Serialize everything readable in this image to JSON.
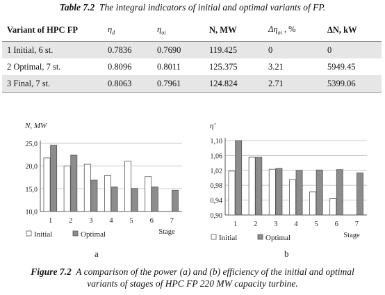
{
  "table_caption": {
    "label": "Table 7.2",
    "text": "The integral indicators of initial and optimal variants of FP."
  },
  "table": {
    "headers": [
      "Variant of HPC FP",
      "ηd",
      "ηoi",
      "N, MW",
      "Δηoi , %",
      "ΔN, kW"
    ],
    "rows": [
      [
        "1 Initial, 6 st.",
        "0.7836",
        "0.7690",
        "119.425",
        "0",
        "0"
      ],
      [
        "2 Optimal, 7 st.",
        "0.8096",
        "0.8011",
        "125.375",
        "3.21",
        "5949.45"
      ],
      [
        "3 Final, 7 st.",
        "0.8063",
        "0.7961",
        "124.824",
        "2.71",
        "5399.06"
      ]
    ]
  },
  "chart_data": [
    {
      "type": "bar",
      "ylabel": "N, MW",
      "xlabel": "Stage",
      "categories": [
        "1",
        "2",
        "3",
        "4",
        "5",
        "6",
        "7"
      ],
      "ylim": [
        10.0,
        25.0
      ],
      "yticks": [
        "10,0",
        "15,0",
        "20,0",
        "25,0"
      ],
      "ytick_values": [
        10,
        15,
        20,
        25
      ],
      "grid": true,
      "legend": "bottom-left",
      "series": [
        {
          "name": "Initial",
          "values": [
            21.8,
            20.0,
            20.4,
            17.9,
            21.1,
            17.7,
            null
          ],
          "color": "#ffffff"
        },
        {
          "name": "Optimal",
          "values": [
            24.6,
            22.4,
            16.9,
            15.4,
            15.1,
            15.4,
            14.7
          ],
          "color": "#8c8c8c"
        }
      ],
      "sublabel": "a"
    },
    {
      "type": "bar",
      "ylabel": "η'",
      "xlabel": "Stage",
      "categories": [
        "1",
        "2",
        "3",
        "4",
        "5",
        "6",
        "7"
      ],
      "ylim": [
        0.9,
        1.1
      ],
      "yticks": [
        "0,90",
        "0,94",
        "0,98",
        "1,02",
        "1,06",
        "1,10"
      ],
      "ytick_values": [
        0.9,
        0.94,
        0.98,
        1.02,
        1.06,
        1.1
      ],
      "grid": true,
      "legend": "bottom-left",
      "series": [
        {
          "name": "Initial",
          "values": [
            1.018,
            1.055,
            1.023,
            0.995,
            0.962,
            0.944,
            null
          ],
          "color": "#ffffff"
        },
        {
          "name": "Optimal",
          "values": [
            1.1,
            1.055,
            1.025,
            1.02,
            1.021,
            1.022,
            1.013
          ],
          "color": "#8c8c8c"
        }
      ],
      "sublabel": "b"
    }
  ],
  "figure_caption": {
    "label": "Figure 7.2",
    "line1": "A comparison of the power (a) and (b) efficiency of the initial and optimal",
    "line2": "variants of stages of HPC FP 220 MW capacity turbine."
  }
}
